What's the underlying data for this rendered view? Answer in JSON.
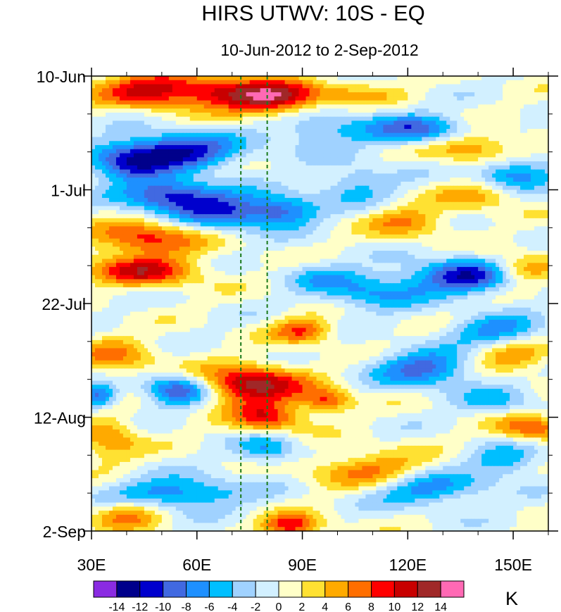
{
  "chart_data": {
    "type": "heatmap",
    "title": "HIRS UTWV: 10S - EQ",
    "subtitle": "10-Jun-2012 to 2-Sep-2012",
    "x_axis": {
      "range": [
        30,
        160
      ],
      "units": "longitude (deg E)",
      "ticks": [
        {
          "value": 30,
          "label": "30E"
        },
        {
          "value": 60,
          "label": "60E"
        },
        {
          "value": 90,
          "label": "90E"
        },
        {
          "value": 120,
          "label": "120E"
        },
        {
          "value": 150,
          "label": "150E"
        }
      ]
    },
    "y_axis": {
      "range": [
        0,
        84
      ],
      "units": "days since 10-Jun-2012 (downward)",
      "ticks": [
        {
          "value": 0,
          "label": "10-Jun"
        },
        {
          "value": 21,
          "label": "1-Jul"
        },
        {
          "value": 42,
          "label": "22-Jul"
        },
        {
          "value": 63,
          "label": "12-Aug"
        },
        {
          "value": 84,
          "label": "2-Sep"
        }
      ]
    },
    "reference_lines_lon": [
      72.5,
      80
    ],
    "colorbar": {
      "unit": "K",
      "levels": [
        -14,
        -12,
        -10,
        -8,
        -6,
        -4,
        -2,
        0,
        2,
        4,
        6,
        8,
        10,
        12,
        14
      ],
      "level_labels": [
        "-14",
        "-12",
        "-10",
        "-8",
        "-6",
        "-4",
        "-2",
        "0",
        "2",
        "4",
        "6",
        "8",
        "10",
        "12",
        "14"
      ],
      "colors": [
        "#8a2be2",
        "#00008b",
        "#0000cd",
        "#4169e1",
        "#1e90ff",
        "#00bfff",
        "#a0d2ff",
        "#d2f0ff",
        "#ffffc8",
        "#ffe132",
        "#ffaa00",
        "#ff6e00",
        "#ff0000",
        "#c80000",
        "#a02828",
        "#ff69b4"
      ]
    },
    "anomaly_features": [
      {
        "lon": 48,
        "day": 2.5,
        "value": 11,
        "sx": 12,
        "sy": 2.3
      },
      {
        "lon": 82,
        "day": 4,
        "value": 13,
        "sx": 9,
        "sy": 2.2
      },
      {
        "lon": 67,
        "day": 3,
        "value": 6,
        "sx": 8,
        "sy": 2
      },
      {
        "lon": 45,
        "day": 30,
        "value": 9,
        "sx": 11,
        "sy": 2.2
      },
      {
        "lon": 45,
        "day": 36,
        "value": 10,
        "sx": 11,
        "sy": 2
      },
      {
        "lon": 75,
        "day": 57,
        "value": 13,
        "sx": 11,
        "sy": 2.5
      },
      {
        "lon": 80,
        "day": 63,
        "value": 9,
        "sx": 7,
        "sy": 2
      },
      {
        "lon": 90,
        "day": 47,
        "value": 8,
        "sx": 6,
        "sy": 1.7
      },
      {
        "lon": 97,
        "day": 60,
        "value": 8,
        "sx": 5,
        "sy": 1.6
      },
      {
        "lon": 87,
        "day": 83,
        "value": 10,
        "sx": 6,
        "sy": 1.5
      },
      {
        "lon": 152,
        "day": 36,
        "value": 9,
        "sx": 7,
        "sy": 2
      },
      {
        "lon": 155,
        "day": 65,
        "value": 8,
        "sx": 7,
        "sy": 1.7
      },
      {
        "lon": 138,
        "day": 13,
        "value": 7,
        "sx": 9,
        "sy": 2
      },
      {
        "lon": 120,
        "day": 27,
        "value": 6,
        "sx": 8,
        "sy": 2
      },
      {
        "lon": 110,
        "day": 73,
        "value": 7,
        "sx": 12,
        "sy": 2.5
      },
      {
        "lon": 35,
        "day": 67,
        "value": 6,
        "sx": 6,
        "sy": 3
      },
      {
        "lon": 40,
        "day": 81,
        "value": 6,
        "sx": 7,
        "sy": 2
      },
      {
        "lon": 37,
        "day": 52,
        "value": 6,
        "sx": 8,
        "sy": 2.5
      },
      {
        "lon": 150,
        "day": 52,
        "value": 6,
        "sx": 8,
        "sy": 2
      },
      {
        "lon": 140,
        "day": 22,
        "value": 5,
        "sx": 8,
        "sy": 2
      },
      {
        "lon": 105,
        "day": 3,
        "value": 4,
        "sx": 10,
        "sy": 1.5
      },
      {
        "lon": 55,
        "day": 14,
        "value": -12,
        "sx": 12,
        "sy": 2.3
      },
      {
        "lon": 52,
        "day": 22,
        "value": -11,
        "sx": 10,
        "sy": 2
      },
      {
        "lon": 68,
        "day": 25,
        "value": -9,
        "sx": 10,
        "sy": 2.3
      },
      {
        "lon": 85,
        "day": 25,
        "value": -8,
        "sx": 7,
        "sy": 2
      },
      {
        "lon": 40,
        "day": 16,
        "value": -8,
        "sx": 8,
        "sy": 2.5
      },
      {
        "lon": 138,
        "day": 37,
        "value": -12,
        "sx": 12,
        "sy": 2.2
      },
      {
        "lon": 123,
        "day": 10,
        "value": -9,
        "sx": 10,
        "sy": 2
      },
      {
        "lon": 150,
        "day": 18,
        "value": -8,
        "sx": 8,
        "sy": 2
      },
      {
        "lon": 55,
        "day": 58,
        "value": -11,
        "sx": 7,
        "sy": 2
      },
      {
        "lon": 32,
        "day": 59,
        "value": -9,
        "sx": 4,
        "sy": 1.6
      },
      {
        "lon": 125,
        "day": 54,
        "value": -9,
        "sx": 10,
        "sy": 2.3
      },
      {
        "lon": 145,
        "day": 47,
        "value": -7,
        "sx": 9,
        "sy": 2
      },
      {
        "lon": 55,
        "day": 77,
        "value": -8,
        "sx": 13,
        "sy": 2
      },
      {
        "lon": 125,
        "day": 76,
        "value": -8,
        "sx": 12,
        "sy": 2.2
      },
      {
        "lon": 148,
        "day": 71,
        "value": -6,
        "sx": 7,
        "sy": 2
      },
      {
        "lon": 110,
        "day": 40,
        "value": -6,
        "sx": 10,
        "sy": 2.5
      },
      {
        "lon": 95,
        "day": 10,
        "value": -5,
        "sx": 10,
        "sy": 2.5
      },
      {
        "lon": 80,
        "day": 69,
        "value": -6,
        "sx": 6,
        "sy": 2
      },
      {
        "lon": 105,
        "day": 20,
        "value": -5,
        "sx": 8,
        "sy": 2.5
      },
      {
        "lon": 95,
        "day": 37,
        "value": -4,
        "sx": 7,
        "sy": 2
      },
      {
        "lon": 145,
        "day": 60,
        "value": -4,
        "sx": 8,
        "sy": 2
      }
    ]
  }
}
